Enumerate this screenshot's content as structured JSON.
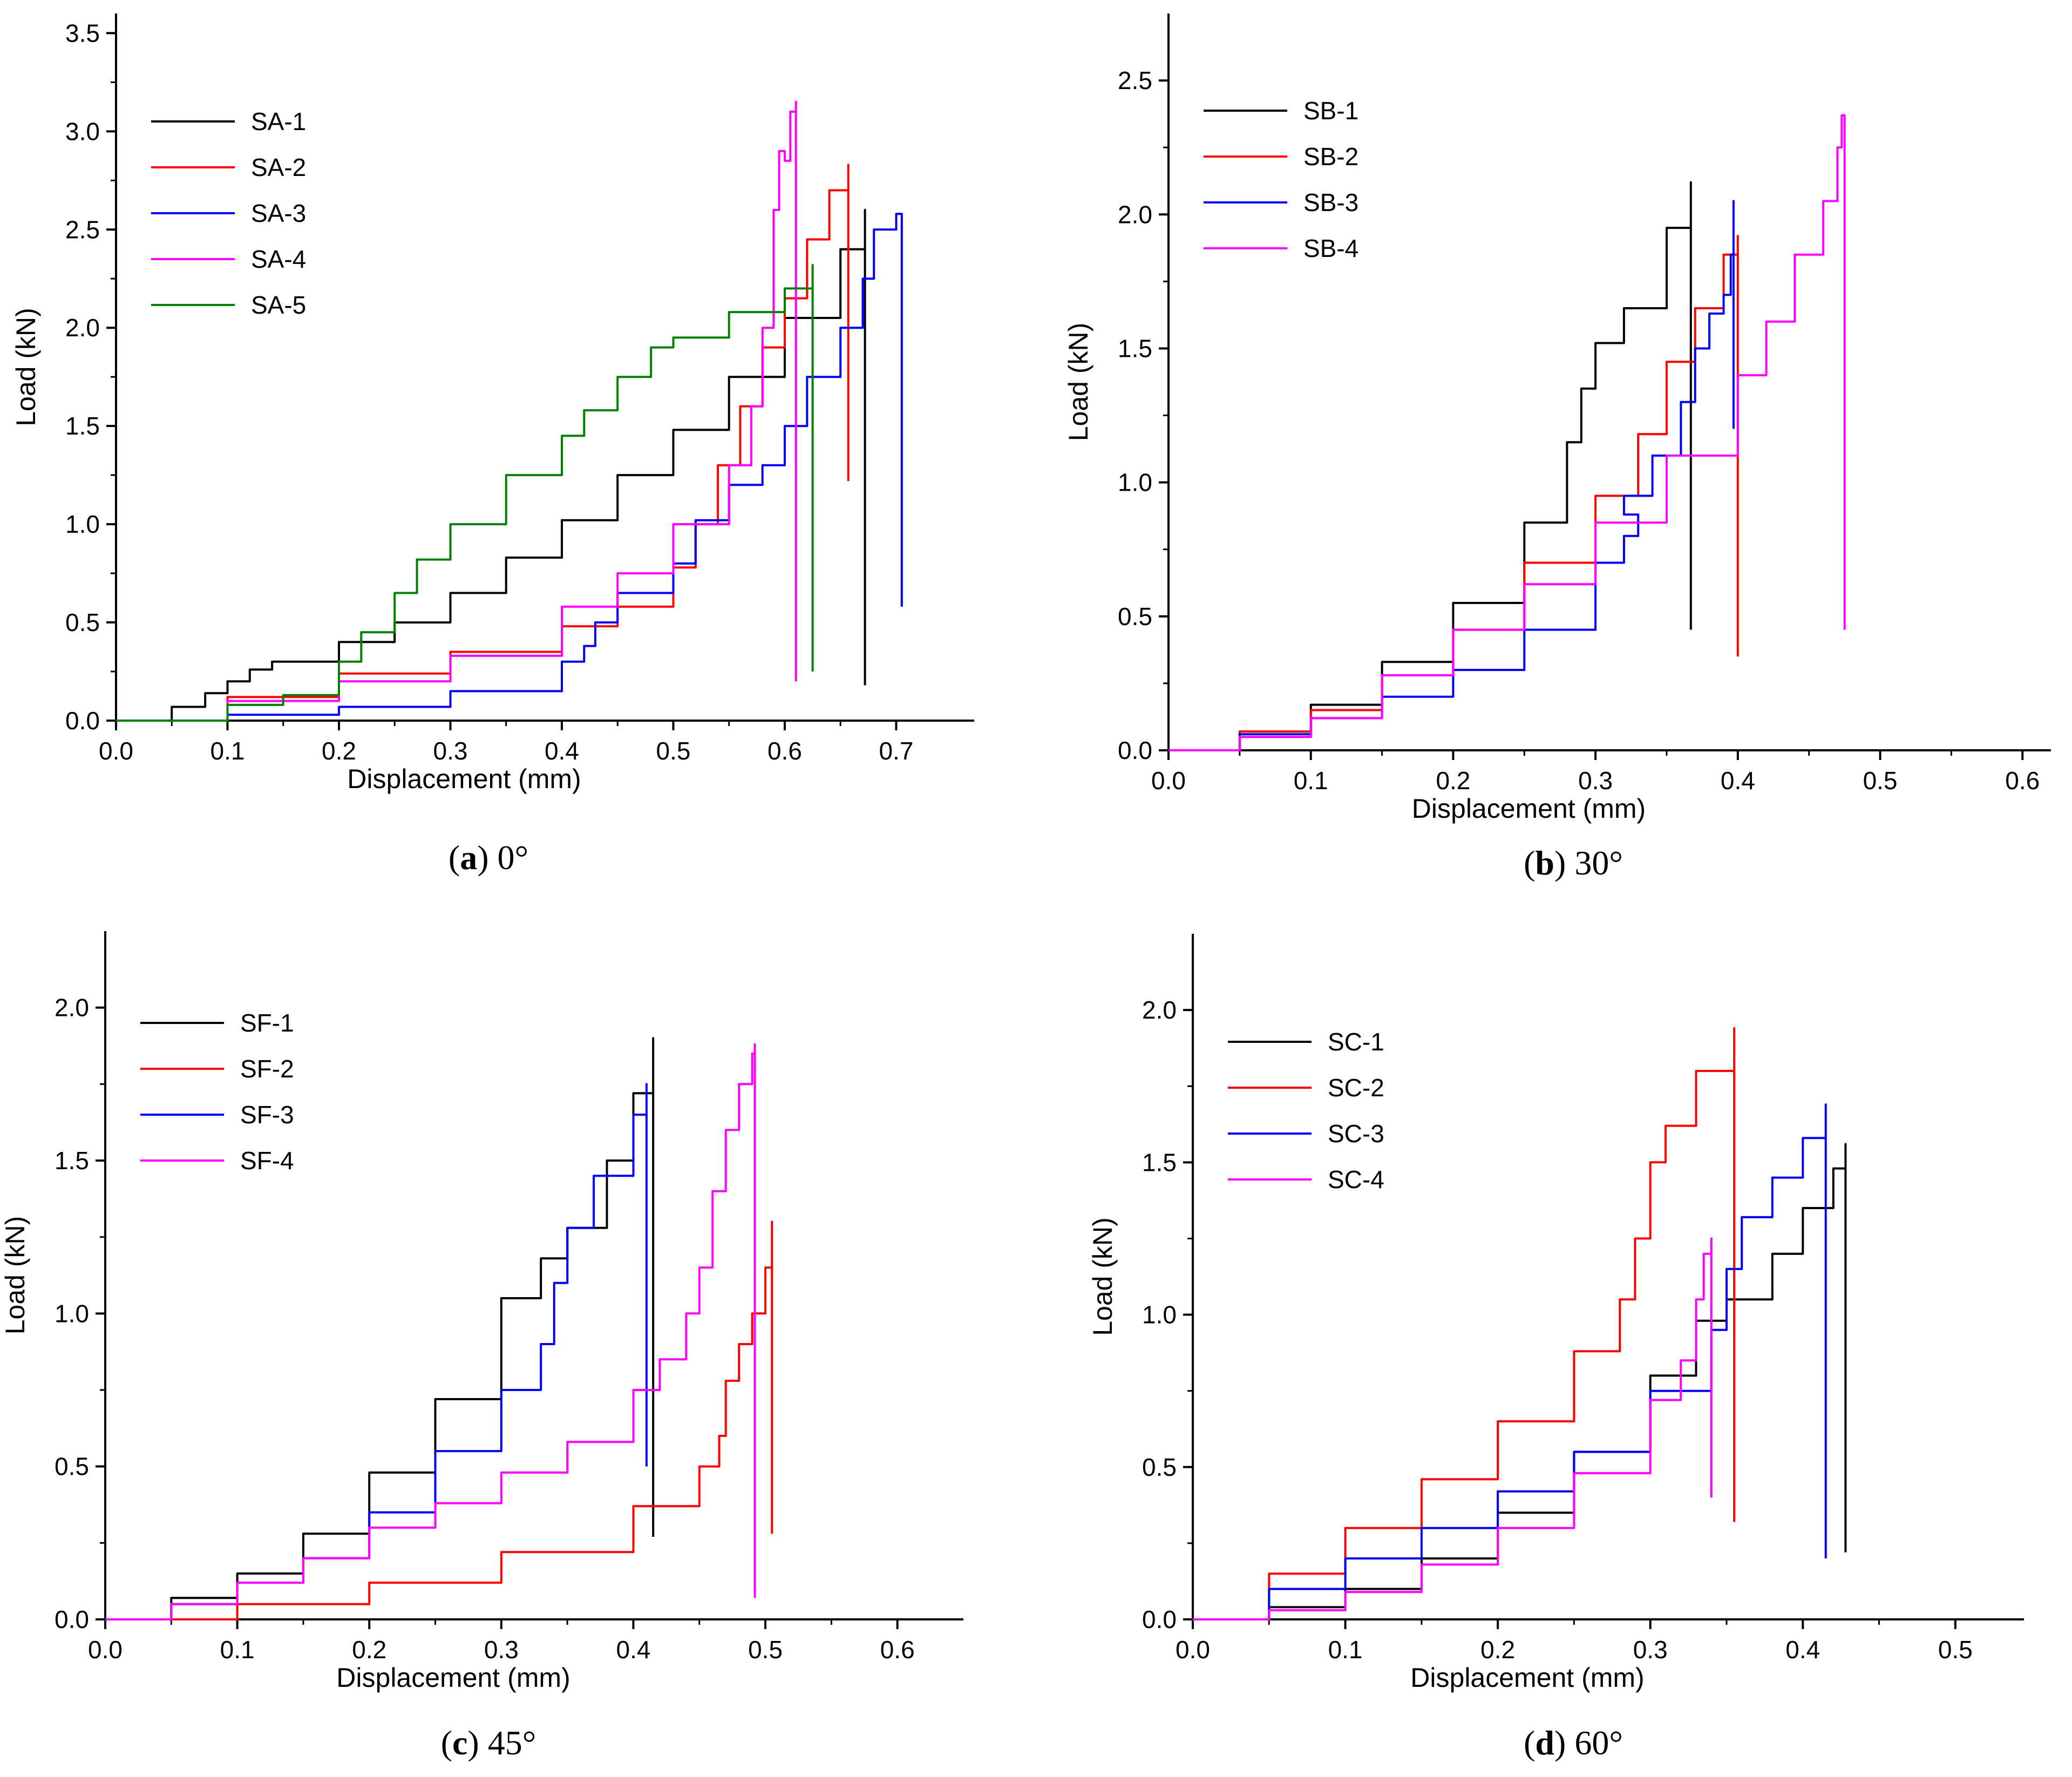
{
  "chart_data": [
    {
      "id": "a",
      "type": "line",
      "caption_letter": "a",
      "caption_angle": "0°",
      "xlabel": "Displacement (mm)",
      "ylabel": "Load (kN)",
      "xlim": [
        0,
        0.77
      ],
      "ylim": [
        0,
        3.6
      ],
      "xticks": [
        "0.0",
        "0.1",
        "0.2",
        "0.3",
        "0.4",
        "0.5",
        "0.6",
        "0.7"
      ],
      "yticks": [
        "0.0",
        "0.5",
        "1.0",
        "1.5",
        "2.0",
        "2.5",
        "3.0",
        "3.5"
      ],
      "legend_position": "top-left",
      "series": [
        {
          "name": "SA-1",
          "color": "#000000",
          "x": [
            0,
            0.05,
            0.08,
            0.1,
            0.12,
            0.14,
            0.2,
            0.25,
            0.3,
            0.35,
            0.4,
            0.45,
            0.5,
            0.55,
            0.6,
            0.65,
            0.672,
            0.672
          ],
          "y": [
            0,
            0.07,
            0.14,
            0.2,
            0.26,
            0.3,
            0.4,
            0.5,
            0.65,
            0.83,
            1.02,
            1.25,
            1.48,
            1.75,
            2.05,
            2.4,
            2.6,
            0.18
          ]
        },
        {
          "name": "SA-2",
          "color": "#ff0000",
          "x": [
            0,
            0.1,
            0.2,
            0.3,
            0.4,
            0.45,
            0.5,
            0.52,
            0.54,
            0.56,
            0.58,
            0.6,
            0.62,
            0.64,
            0.657,
            0.657
          ],
          "y": [
            0,
            0.12,
            0.24,
            0.35,
            0.48,
            0.58,
            0.78,
            1.0,
            1.3,
            1.6,
            1.9,
            2.15,
            2.45,
            2.7,
            2.83,
            1.22
          ]
        },
        {
          "name": "SA-3",
          "color": "#0000ff",
          "x": [
            0,
            0.1,
            0.2,
            0.3,
            0.4,
            0.42,
            0.43,
            0.45,
            0.5,
            0.52,
            0.55,
            0.58,
            0.6,
            0.62,
            0.65,
            0.67,
            0.68,
            0.7,
            0.705,
            0.705
          ],
          "y": [
            0,
            0.03,
            0.07,
            0.15,
            0.3,
            0.38,
            0.5,
            0.65,
            0.8,
            1.02,
            1.2,
            1.3,
            1.5,
            1.75,
            2.0,
            2.25,
            2.5,
            2.58,
            2.58,
            0.58
          ]
        },
        {
          "name": "SA-4",
          "color": "#ff00ff",
          "x": [
            0,
            0.1,
            0.2,
            0.3,
            0.4,
            0.45,
            0.5,
            0.55,
            0.57,
            0.58,
            0.59,
            0.595,
            0.6,
            0.605,
            0.61,
            0.61
          ],
          "y": [
            0,
            0.1,
            0.2,
            0.33,
            0.58,
            0.75,
            1.0,
            1.3,
            1.6,
            2.0,
            2.6,
            2.9,
            2.85,
            3.1,
            3.15,
            0.2
          ]
        },
        {
          "name": "SA-5",
          "color": "#008000",
          "x": [
            0,
            0.1,
            0.15,
            0.2,
            0.22,
            0.25,
            0.27,
            0.3,
            0.35,
            0.4,
            0.42,
            0.45,
            0.48,
            0.5,
            0.55,
            0.6,
            0.625,
            0.625
          ],
          "y": [
            0,
            0.08,
            0.13,
            0.3,
            0.45,
            0.65,
            0.82,
            1.0,
            1.25,
            1.45,
            1.58,
            1.75,
            1.9,
            1.95,
            2.08,
            2.2,
            2.32,
            0.25
          ]
        }
      ]
    },
    {
      "id": "b",
      "type": "line",
      "caption_letter": "b",
      "caption_angle": "30°",
      "xlabel": "Displacement (mm)",
      "ylabel": "Load (kN)",
      "xlim": [
        0,
        0.62
      ],
      "ylim": [
        0,
        2.75
      ],
      "xticks": [
        "0.0",
        "0.1",
        "0.2",
        "0.3",
        "0.4",
        "0.5",
        "0.6"
      ],
      "yticks": [
        "0.0",
        "0.5",
        "1.0",
        "1.5",
        "2.0",
        "2.5"
      ],
      "legend_position": "top-left",
      "series": [
        {
          "name": "SB-1",
          "color": "#000000",
          "x": [
            0,
            0.05,
            0.1,
            0.15,
            0.2,
            0.25,
            0.28,
            0.29,
            0.3,
            0.32,
            0.35,
            0.367,
            0.367
          ],
          "y": [
            0,
            0.07,
            0.17,
            0.33,
            0.55,
            0.85,
            1.15,
            1.35,
            1.52,
            1.65,
            1.95,
            2.12,
            0.45
          ]
        },
        {
          "name": "SB-2",
          "color": "#ff0000",
          "x": [
            0,
            0.05,
            0.1,
            0.15,
            0.2,
            0.25,
            0.3,
            0.33,
            0.35,
            0.37,
            0.39,
            0.4,
            0.4
          ],
          "y": [
            0,
            0.07,
            0.15,
            0.28,
            0.45,
            0.7,
            0.95,
            1.18,
            1.45,
            1.65,
            1.85,
            1.92,
            0.35
          ]
        },
        {
          "name": "SB-3",
          "color": "#0000ff",
          "x": [
            0,
            0.05,
            0.1,
            0.15,
            0.2,
            0.25,
            0.3,
            0.32,
            0.33,
            0.32,
            0.34,
            0.36,
            0.37,
            0.38,
            0.39,
            0.395,
            0.397,
            0.397
          ],
          "y": [
            0,
            0.06,
            0.12,
            0.2,
            0.3,
            0.45,
            0.7,
            0.8,
            0.88,
            0.95,
            1.1,
            1.3,
            1.5,
            1.63,
            1.7,
            1.85,
            2.05,
            1.2
          ]
        },
        {
          "name": "SB-4",
          "color": "#ff00ff",
          "x": [
            0,
            0.05,
            0.1,
            0.15,
            0.2,
            0.25,
            0.3,
            0.35,
            0.4,
            0.42,
            0.44,
            0.46,
            0.47,
            0.473,
            0.475,
            0.475
          ],
          "y": [
            0,
            0.05,
            0.12,
            0.28,
            0.45,
            0.62,
            0.85,
            1.1,
            1.4,
            1.6,
            1.85,
            2.05,
            2.25,
            2.37,
            1.0,
            0.45
          ]
        }
      ]
    },
    {
      "id": "c",
      "type": "line",
      "caption_letter": "c",
      "caption_angle": "45°",
      "xlabel": "Displacement (mm)",
      "ylabel": "Load (kN)",
      "xlim": [
        0,
        0.65
      ],
      "ylim": [
        0,
        2.25
      ],
      "xticks": [
        "0.0",
        "0.1",
        "0.2",
        "0.3",
        "0.4",
        "0.5",
        "0.6"
      ],
      "yticks": [
        "0.0",
        "0.5",
        "1.0",
        "1.5",
        "2.0"
      ],
      "legend_position": "top-left",
      "series": [
        {
          "name": "SF-1",
          "color": "#000000",
          "x": [
            0,
            0.05,
            0.1,
            0.15,
            0.2,
            0.25,
            0.3,
            0.33,
            0.35,
            0.38,
            0.4,
            0.415,
            0.415
          ],
          "y": [
            0,
            0.07,
            0.15,
            0.28,
            0.48,
            0.72,
            1.05,
            1.18,
            1.28,
            1.5,
            1.72,
            1.9,
            0.27
          ]
        },
        {
          "name": "SF-2",
          "color": "#ff0000",
          "x": [
            0,
            0.1,
            0.2,
            0.3,
            0.4,
            0.45,
            0.465,
            0.47,
            0.48,
            0.49,
            0.5,
            0.505,
            0.505
          ],
          "y": [
            0,
            0.05,
            0.12,
            0.22,
            0.37,
            0.5,
            0.6,
            0.78,
            0.9,
            1.0,
            1.15,
            1.3,
            0.28
          ]
        },
        {
          "name": "SF-3",
          "color": "#0000ff",
          "x": [
            0,
            0.05,
            0.1,
            0.15,
            0.2,
            0.25,
            0.3,
            0.33,
            0.34,
            0.35,
            0.37,
            0.4,
            0.41,
            0.41
          ],
          "y": [
            0,
            0.05,
            0.12,
            0.2,
            0.35,
            0.55,
            0.75,
            0.9,
            1.1,
            1.28,
            1.45,
            1.65,
            1.75,
            0.5
          ]
        },
        {
          "name": "SF-4",
          "color": "#ff00ff",
          "x": [
            0,
            0.05,
            0.1,
            0.15,
            0.2,
            0.25,
            0.3,
            0.35,
            0.4,
            0.42,
            0.44,
            0.45,
            0.46,
            0.47,
            0.48,
            0.49,
            0.492,
            0.492
          ],
          "y": [
            0,
            0.05,
            0.12,
            0.2,
            0.3,
            0.38,
            0.48,
            0.58,
            0.75,
            0.85,
            1.0,
            1.15,
            1.4,
            1.6,
            1.75,
            1.85,
            1.88,
            0.07
          ]
        }
      ]
    },
    {
      "id": "d",
      "type": "line",
      "caption_letter": "d",
      "caption_angle": "60°",
      "xlabel": "Displacement (mm)",
      "ylabel": "Load (kN)",
      "xlim": [
        0,
        0.545
      ],
      "ylim": [
        0,
        2.25
      ],
      "xticks": [
        "0.0",
        "0.1",
        "0.2",
        "0.3",
        "0.4",
        "0.5"
      ],
      "yticks": [
        "0.0",
        "0.5",
        "1.0",
        "1.5",
        "2.0"
      ],
      "legend_position": "top-left",
      "series": [
        {
          "name": "SC-1",
          "color": "#000000",
          "x": [
            0,
            0.05,
            0.1,
            0.15,
            0.2,
            0.25,
            0.3,
            0.33,
            0.35,
            0.38,
            0.4,
            0.42,
            0.428,
            0.428
          ],
          "y": [
            0,
            0.04,
            0.1,
            0.2,
            0.35,
            0.55,
            0.8,
            0.98,
            1.05,
            1.2,
            1.35,
            1.48,
            1.56,
            0.22
          ]
        },
        {
          "name": "SC-2",
          "color": "#ff0000",
          "x": [
            0,
            0.05,
            0.1,
            0.15,
            0.2,
            0.25,
            0.28,
            0.29,
            0.3,
            0.31,
            0.33,
            0.355,
            0.355
          ],
          "y": [
            0,
            0.15,
            0.3,
            0.46,
            0.65,
            0.88,
            1.05,
            1.25,
            1.5,
            1.62,
            1.8,
            1.94,
            0.32
          ]
        },
        {
          "name": "SC-3",
          "color": "#0000ff",
          "x": [
            0,
            0.05,
            0.1,
            0.15,
            0.2,
            0.25,
            0.3,
            0.34,
            0.35,
            0.36,
            0.38,
            0.4,
            0.415,
            0.415
          ],
          "y": [
            0,
            0.1,
            0.2,
            0.3,
            0.42,
            0.55,
            0.75,
            0.95,
            1.15,
            1.32,
            1.45,
            1.58,
            1.69,
            0.2
          ]
        },
        {
          "name": "SC-4",
          "color": "#ff00ff",
          "x": [
            0,
            0.05,
            0.1,
            0.15,
            0.2,
            0.25,
            0.3,
            0.32,
            0.33,
            0.335,
            0.34,
            0.34
          ],
          "y": [
            0,
            0.03,
            0.09,
            0.18,
            0.3,
            0.48,
            0.72,
            0.85,
            1.05,
            1.2,
            1.25,
            0.4
          ]
        }
      ]
    }
  ]
}
